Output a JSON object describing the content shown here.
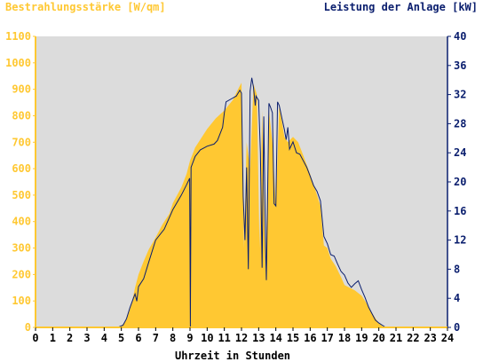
{
  "chart_data": {
    "type": "area",
    "left_axis_title": "Bestrahlungsstärke [W/qm]",
    "right_axis_title": "Leistung der Anlage [kW]",
    "xlabel": "Uhrzeit in Stunden",
    "xlim": [
      0,
      24
    ],
    "x_ticks": [
      "0",
      "1",
      "2",
      "3",
      "4",
      "5",
      "6",
      "7",
      "8",
      "9",
      "10",
      "11",
      "12",
      "13",
      "14",
      "15",
      "16",
      "17",
      "18",
      "19",
      "20",
      "21",
      "22",
      "23",
      "24"
    ],
    "y_left_lim": [
      0,
      1100
    ],
    "y_left_ticks": [
      "0",
      "100",
      "200",
      "300",
      "400",
      "500",
      "600",
      "700",
      "800",
      "900",
      "1000",
      "1100"
    ],
    "y_right_lim": [
      0,
      40
    ],
    "y_right_ticks": [
      "0",
      "4",
      "8",
      "12",
      "16",
      "20",
      "24",
      "28",
      "32",
      "36",
      "40"
    ],
    "grid": false,
    "series": [
      {
        "name": "Bestrahlungsstärke [W/qm]",
        "axis": "left",
        "style": "filled-area",
        "color": "#ffc832",
        "points": [
          [
            0,
            0
          ],
          [
            4.7,
            0
          ],
          [
            5.0,
            5
          ],
          [
            5.3,
            30
          ],
          [
            5.6,
            90
          ],
          [
            5.8,
            150
          ],
          [
            6.0,
            200
          ],
          [
            6.3,
            250
          ],
          [
            6.6,
            295
          ],
          [
            7.0,
            340
          ],
          [
            7.4,
            390
          ],
          [
            7.8,
            430
          ],
          [
            8.0,
            470
          ],
          [
            8.5,
            530
          ],
          [
            8.8,
            580
          ],
          [
            9.0,
            630
          ],
          [
            9.3,
            680
          ],
          [
            9.6,
            710
          ],
          [
            10.0,
            750
          ],
          [
            10.5,
            790
          ],
          [
            11.0,
            820
          ],
          [
            11.5,
            860
          ],
          [
            11.8,
            900
          ],
          [
            12.0,
            925
          ],
          [
            12.15,
            300
          ],
          [
            12.3,
            700
          ],
          [
            12.5,
            600
          ],
          [
            12.7,
            920
          ],
          [
            12.9,
            880
          ],
          [
            13.05,
            300
          ],
          [
            13.2,
            820
          ],
          [
            13.4,
            200
          ],
          [
            13.6,
            820
          ],
          [
            13.8,
            700
          ],
          [
            14.0,
            460
          ],
          [
            14.2,
            840
          ],
          [
            14.5,
            720
          ],
          [
            14.7,
            700
          ],
          [
            15.0,
            720
          ],
          [
            15.3,
            700
          ],
          [
            15.6,
            650
          ],
          [
            16.0,
            580
          ],
          [
            16.3,
            520
          ],
          [
            16.6,
            460
          ],
          [
            16.8,
            310
          ],
          [
            17.0,
            300
          ],
          [
            17.2,
            260
          ],
          [
            17.5,
            230
          ],
          [
            17.8,
            190
          ],
          [
            18.0,
            160
          ],
          [
            18.3,
            150
          ],
          [
            18.6,
            140
          ],
          [
            19.0,
            120
          ],
          [
            19.3,
            90
          ],
          [
            19.6,
            55
          ],
          [
            19.9,
            25
          ],
          [
            20.2,
            5
          ],
          [
            20.4,
            0
          ],
          [
            24,
            0
          ]
        ]
      },
      {
        "name": "Leistung der Anlage [kW]",
        "axis": "right",
        "style": "line",
        "color": "#0a1e6e",
        "points": [
          [
            0,
            0
          ],
          [
            4.8,
            0
          ],
          [
            5.1,
            0.3
          ],
          [
            5.3,
            1.2
          ],
          [
            5.5,
            2.7
          ],
          [
            5.7,
            4.0
          ],
          [
            5.8,
            4.6
          ],
          [
            5.9,
            3.6
          ],
          [
            6.0,
            5.6
          ],
          [
            6.3,
            6.7
          ],
          [
            6.6,
            9.0
          ],
          [
            7.0,
            12.0
          ],
          [
            7.5,
            13.5
          ],
          [
            8.0,
            16.2
          ],
          [
            8.5,
            18.2
          ],
          [
            8.8,
            19.6
          ],
          [
            8.98,
            20.5
          ],
          [
            9.0,
            11.0
          ],
          [
            9.02,
            0
          ],
          [
            9.06,
            22.0
          ],
          [
            9.3,
            23.5
          ],
          [
            9.6,
            24.4
          ],
          [
            10.0,
            24.9
          ],
          [
            10.4,
            25.2
          ],
          [
            10.6,
            25.7
          ],
          [
            10.9,
            27.5
          ],
          [
            11.0,
            29.5
          ],
          [
            11.1,
            31.0
          ],
          [
            11.4,
            31.4
          ],
          [
            11.7,
            31.8
          ],
          [
            11.9,
            32.6
          ],
          [
            12.0,
            32.2
          ],
          [
            12.1,
            18.0
          ],
          [
            12.2,
            12.0
          ],
          [
            12.3,
            22.0
          ],
          [
            12.4,
            8.0
          ],
          [
            12.5,
            32.5
          ],
          [
            12.6,
            34.3
          ],
          [
            12.7,
            33.0
          ],
          [
            12.8,
            30.5
          ],
          [
            12.85,
            31.8
          ],
          [
            13.0,
            31.2
          ],
          [
            13.1,
            24.0
          ],
          [
            13.2,
            8.2
          ],
          [
            13.3,
            29.0
          ],
          [
            13.4,
            11.0
          ],
          [
            13.45,
            6.5
          ],
          [
            13.6,
            30.8
          ],
          [
            13.7,
            30.2
          ],
          [
            13.8,
            29.5
          ],
          [
            13.9,
            17.0
          ],
          [
            14.0,
            16.7
          ],
          [
            14.1,
            31.0
          ],
          [
            14.2,
            30.5
          ],
          [
            14.35,
            28.8
          ],
          [
            14.5,
            27.2
          ],
          [
            14.6,
            25.8
          ],
          [
            14.7,
            27.5
          ],
          [
            14.8,
            24.5
          ],
          [
            15.0,
            25.5
          ],
          [
            15.2,
            24.0
          ],
          [
            15.4,
            23.8
          ],
          [
            15.6,
            22.9
          ],
          [
            15.8,
            22.0
          ],
          [
            16.0,
            20.8
          ],
          [
            16.2,
            19.5
          ],
          [
            16.4,
            18.7
          ],
          [
            16.6,
            17.4
          ],
          [
            16.8,
            12.5
          ],
          [
            17.0,
            11.5
          ],
          [
            17.2,
            10.0
          ],
          [
            17.4,
            9.8
          ],
          [
            17.6,
            8.7
          ],
          [
            17.8,
            7.7
          ],
          [
            18.0,
            7.2
          ],
          [
            18.2,
            6.1
          ],
          [
            18.4,
            5.5
          ],
          [
            18.6,
            6.0
          ],
          [
            18.8,
            6.4
          ],
          [
            19.0,
            5.2
          ],
          [
            19.2,
            4.1
          ],
          [
            19.4,
            2.8
          ],
          [
            19.6,
            1.9
          ],
          [
            19.8,
            1.0
          ],
          [
            20.0,
            0.6
          ],
          [
            20.2,
            0.3
          ],
          [
            20.4,
            0
          ],
          [
            24,
            0
          ]
        ]
      }
    ]
  },
  "colors": {
    "plot_background": "#dcdcdc",
    "left_axis": "#ffc832",
    "right_axis": "#0a1e6e",
    "text_dark": "#000000"
  }
}
